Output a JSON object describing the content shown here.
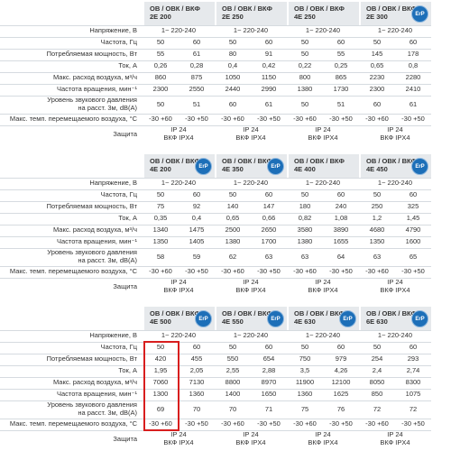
{
  "tables": [
    {
      "models": [
        {
          "line1": "ОВ / ОВК / ВКФ",
          "line2": "2Е 200"
        },
        {
          "line1": "ОВ / ОВК / ВКФ",
          "line2": "2Е 250"
        },
        {
          "line1": "ОВ / ОВК / ВКФ",
          "line2": "4Е 250"
        },
        {
          "line1": "ОВ / ОВК / ВКФ",
          "line2": "2Е 300",
          "logo": "ErP"
        }
      ],
      "rows": [
        {
          "label": "Напряжение, В",
          "cells": [
            "1~ 220-240",
            "1~ 220-240",
            "1~ 220-240",
            "1~ 220-240"
          ]
        },
        {
          "label": "Частота, Гц",
          "cells": [
            "50",
            "60",
            "50",
            "60",
            "50",
            "60",
            "50",
            "60"
          ]
        },
        {
          "label": "Потребляемая мощность, Вт",
          "cells": [
            "55",
            "61",
            "80",
            "91",
            "50",
            "55",
            "145",
            "178"
          ]
        },
        {
          "label": "Ток, А",
          "cells": [
            "0,26",
            "0,28",
            "0,4",
            "0,42",
            "0,22",
            "0,25",
            "0,65",
            "0,8"
          ]
        },
        {
          "label": "Макс. расход воздуха, м³/ч",
          "cells": [
            "860",
            "875",
            "1050",
            "1150",
            "800",
            "865",
            "2230",
            "2280"
          ]
        },
        {
          "label": "Частота вращения, мин⁻¹",
          "cells": [
            "2300",
            "2550",
            "2440",
            "2990",
            "1380",
            "1730",
            "2300",
            "2410"
          ]
        },
        {
          "label": "Уровень звукового давления\nна расст. 3м, dB(A)",
          "cells": [
            "50",
            "51",
            "60",
            "61",
            "50",
            "51",
            "60",
            "61"
          ]
        },
        {
          "label": "Макс. темп. перемещаемого воздуха, °С",
          "cells": [
            "-30 +60",
            "-30 +50",
            "-30 +60",
            "-30 +50",
            "-30 +60",
            "-30 +50",
            "-30 +60",
            "-30 +50"
          ]
        },
        {
          "label": "Защита",
          "cells": [
            "IP 24\nВКФ IPX4",
            "IP 24\nВКФ IPX4",
            "IP 24\nВКФ IPX4",
            "IP 24\nВКФ IPX4"
          ]
        }
      ]
    },
    {
      "models": [
        {
          "line1": "ОВ / ОВК / ВКФ",
          "line2": "4Е 200",
          "logo": "ErP"
        },
        {
          "line1": "ОВ / ОВК / ВКФ",
          "line2": "4Е 350",
          "logo": "ErP"
        },
        {
          "line1": "ОВ / ОВК / ВКФ",
          "line2": "4Е 400"
        },
        {
          "line1": "ОВ / ОВК / ВКФ",
          "line2": "4Е 450",
          "logo": "ErP"
        }
      ],
      "rows": [
        {
          "label": "Напряжение, В",
          "cells": [
            "1~ 220-240",
            "1~ 220-240",
            "1~ 220-240",
            "1~ 220-240"
          ]
        },
        {
          "label": "Частота, Гц",
          "cells": [
            "50",
            "60",
            "50",
            "60",
            "50",
            "60",
            "50",
            "60"
          ]
        },
        {
          "label": "Потребляемая мощность, Вт",
          "cells": [
            "75",
            "92",
            "140",
            "147",
            "180",
            "240",
            "250",
            "325"
          ]
        },
        {
          "label": "Ток, А",
          "cells": [
            "0,35",
            "0,4",
            "0,65",
            "0,66",
            "0,82",
            "1,08",
            "1,2",
            "1,45"
          ]
        },
        {
          "label": "Макс. расход воздуха, м³/ч",
          "cells": [
            "1340",
            "1475",
            "2500",
            "2650",
            "3580",
            "3890",
            "4680",
            "4790"
          ]
        },
        {
          "label": "Частота вращения, мин⁻¹",
          "cells": [
            "1350",
            "1405",
            "1380",
            "1700",
            "1380",
            "1655",
            "1350",
            "1600"
          ]
        },
        {
          "label": "Уровень звукового давления\nна расст. 3м, dB(A)",
          "cells": [
            "58",
            "59",
            "62",
            "63",
            "63",
            "64",
            "63",
            "65"
          ]
        },
        {
          "label": "Макс. темп. перемещаемого воздуха, °С",
          "cells": [
            "-30 +60",
            "-30 +50",
            "-30 +60",
            "-30 +50",
            "-30 +60",
            "-30 +50",
            "-30 +60",
            "-30 +50"
          ]
        },
        {
          "label": "Защита",
          "cells": [
            "IP 24\nВКФ IPX4",
            "IP 24\nВКФ IPX4",
            "IP 24\nВКФ IPX4",
            "IP 24\nВКФ IPX4"
          ]
        }
      ]
    },
    {
      "models": [
        {
          "line1": "ОВ / ОВК / ВКФ",
          "line2": "4Е 500",
          "logo": "ErP"
        },
        {
          "line1": "ОВ / ОВК / ВКФ",
          "line2": "4Е 550",
          "logo": "ErP"
        },
        {
          "line1": "ОВ / ОВК / ВКФ",
          "line2": "4Е 630",
          "logo": "ErP"
        },
        {
          "line1": "ОВ / ОВК / ВКФ",
          "line2": "6Е 630",
          "logo": "ErP"
        }
      ],
      "rows": [
        {
          "label": "Напряжение, В",
          "cells": [
            "1~ 220-240",
            "1~ 220-240",
            "1~ 220-240",
            "1~ 220-240"
          ]
        },
        {
          "label": "Частота, Гц",
          "cells": [
            "50",
            "60",
            "50",
            "60",
            "50",
            "60",
            "50",
            "60"
          ]
        },
        {
          "label": "Потребляемая мощность, Вт",
          "cells": [
            "420",
            "455",
            "550",
            "654",
            "750",
            "979",
            "254",
            "293"
          ]
        },
        {
          "label": "Ток, А",
          "cells": [
            "1,95",
            "2,05",
            "2,55",
            "2,88",
            "3,5",
            "4,26",
            "2,4",
            "2,74"
          ]
        },
        {
          "label": "Макс. расход воздуха, м³/ч",
          "cells": [
            "7060",
            "7130",
            "8800",
            "8970",
            "11900",
            "12100",
            "8050",
            "8300"
          ]
        },
        {
          "label": "Частота вращения, мин⁻¹",
          "cells": [
            "1300",
            "1360",
            "1400",
            "1650",
            "1360",
            "1625",
            "850",
            "1075"
          ]
        },
        {
          "label": "Уровень звукового давления\nна расст. 3м, dB(A)",
          "cells": [
            "69",
            "70",
            "70",
            "71",
            "75",
            "76",
            "72",
            "72"
          ]
        },
        {
          "label": "Макс. темп. перемещаемого воздуха, °С",
          "cells": [
            "-30 +60",
            "-30 +50",
            "-30 +60",
            "-30 +50",
            "-30 +60",
            "-30 +50",
            "-30 +60",
            "-30 +50"
          ]
        },
        {
          "label": "Защита",
          "cells": [
            "IP 24\nВКФ IPX4",
            "IP 24\nВКФ IPX4",
            "IP 24\nВКФ IPX4",
            "IP 24\nВКФ IPX4"
          ]
        }
      ]
    }
  ]
}
